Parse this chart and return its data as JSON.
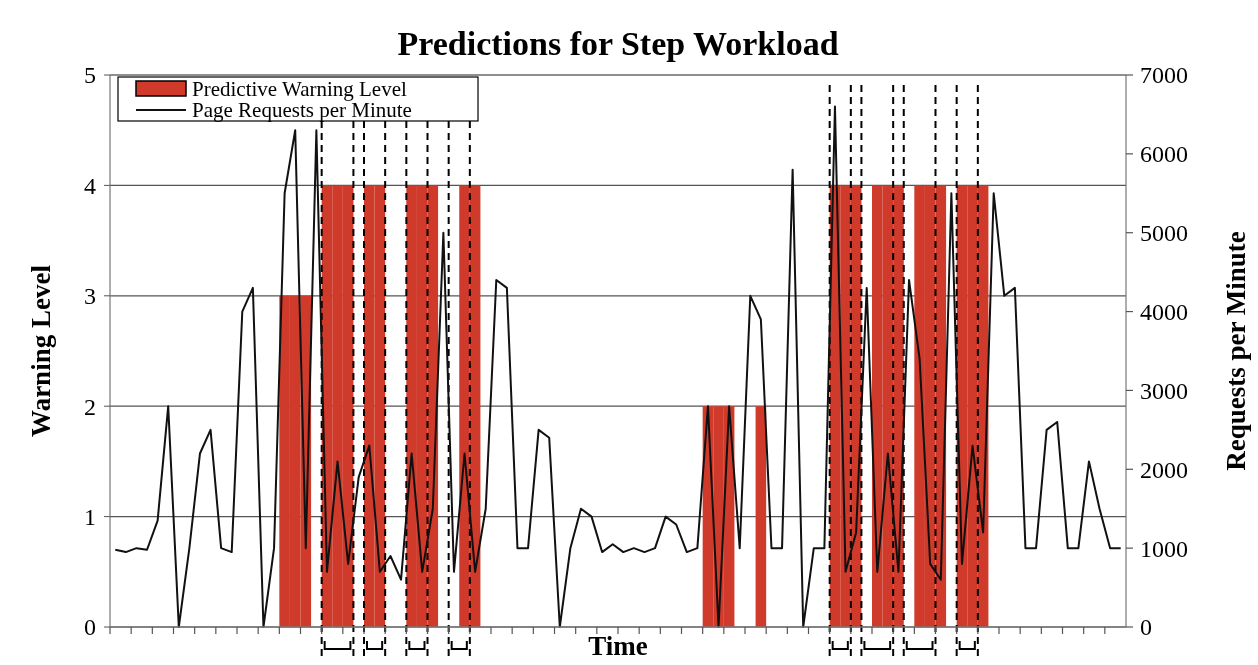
{
  "chart_data": {
    "type": "bar",
    "title": "Predictions for Step Workload",
    "xlabel": "Time",
    "ylabel": "Warning Level",
    "y2label": "Requests per Minute",
    "categories": [
      null,
      null,
      null,
      null,
      null,
      null,
      null,
      null,
      null,
      null,
      null,
      null,
      null,
      null,
      null,
      null,
      null,
      null,
      null,
      null,
      null,
      null,
      null,
      null,
      null,
      null,
      null,
      null,
      null,
      null,
      null,
      null,
      null,
      null,
      null,
      null,
      null,
      null,
      null,
      null,
      null,
      null,
      null,
      null,
      null,
      null,
      null,
      null,
      null,
      null,
      null,
      null,
      null,
      null,
      null,
      null,
      null,
      null,
      null,
      null,
      null,
      null,
      null,
      null,
      null,
      null,
      null,
      null,
      null,
      null,
      null,
      null,
      null,
      null,
      null,
      null,
      null,
      null,
      null,
      null,
      null,
      null,
      null,
      null,
      null,
      null,
      null,
      null,
      null,
      null,
      null,
      null,
      null,
      null,
      null,
      null
    ],
    "ylim": [
      0,
      5
    ],
    "yticks": [
      0,
      1,
      2,
      3,
      4,
      5
    ],
    "y2lim": [
      0,
      7000
    ],
    "y2ticks": [
      0,
      1000,
      2000,
      3000,
      4000,
      5000,
      6000,
      7000
    ],
    "grid": "y",
    "legend": "top left",
    "series": [
      {
        "name": "Predictive Warning Level",
        "color": "#d03a2a",
        "values": [
          0,
          0,
          0,
          0,
          0,
          0,
          0,
          0,
          0,
          0,
          0,
          0,
          0,
          0,
          0,
          0,
          3,
          3,
          3,
          0,
          4,
          4,
          4,
          0,
          4,
          4,
          0,
          0,
          4,
          4,
          4,
          0,
          0,
          4,
          4,
          0,
          0,
          0,
          0,
          0,
          0,
          0,
          0,
          0,
          0,
          0,
          0,
          0,
          0,
          0,
          0,
          0,
          0,
          0,
          0,
          0,
          2,
          2,
          2,
          0,
          0,
          2,
          0,
          0,
          0,
          0,
          0,
          0,
          4,
          4,
          4,
          0,
          4,
          4,
          4,
          0,
          4,
          4,
          4,
          0,
          4,
          4,
          4,
          0,
          0,
          0,
          0,
          0,
          0,
          0,
          0,
          0,
          0,
          0,
          0,
          0
        ]
      },
      {
        "name": "Page Requests per Minute",
        "type": "line",
        "axis": "y2",
        "color": "#111111",
        "values": [
          980,
          950,
          1000,
          980,
          1350,
          2800,
          0,
          1000,
          2200,
          2500,
          1000,
          950,
          4000,
          4300,
          0,
          1000,
          5500,
          6300,
          1000,
          6300,
          700,
          2100,
          800,
          1900,
          2300,
          700,
          900,
          600,
          2200,
          700,
          1500,
          5000,
          700,
          2200,
          700,
          1500,
          4400,
          4300,
          1000,
          1000,
          2500,
          2400,
          0,
          1000,
          1500,
          1400,
          950,
          1050,
          950,
          1000,
          950,
          1000,
          1400,
          1300,
          950,
          1000,
          2800,
          0,
          2800,
          1000,
          4200,
          3900,
          1000,
          1000,
          5800,
          0,
          1000,
          1000,
          6600,
          700,
          1200,
          4300,
          700,
          2200,
          700,
          4400,
          3400,
          800,
          600,
          5500,
          800,
          2300,
          1200,
          5500,
          4200,
          4300,
          1000,
          1000,
          2500,
          2600,
          1000,
          1000,
          2100,
          1500,
          1000,
          1000
        ]
      }
    ]
  }
}
